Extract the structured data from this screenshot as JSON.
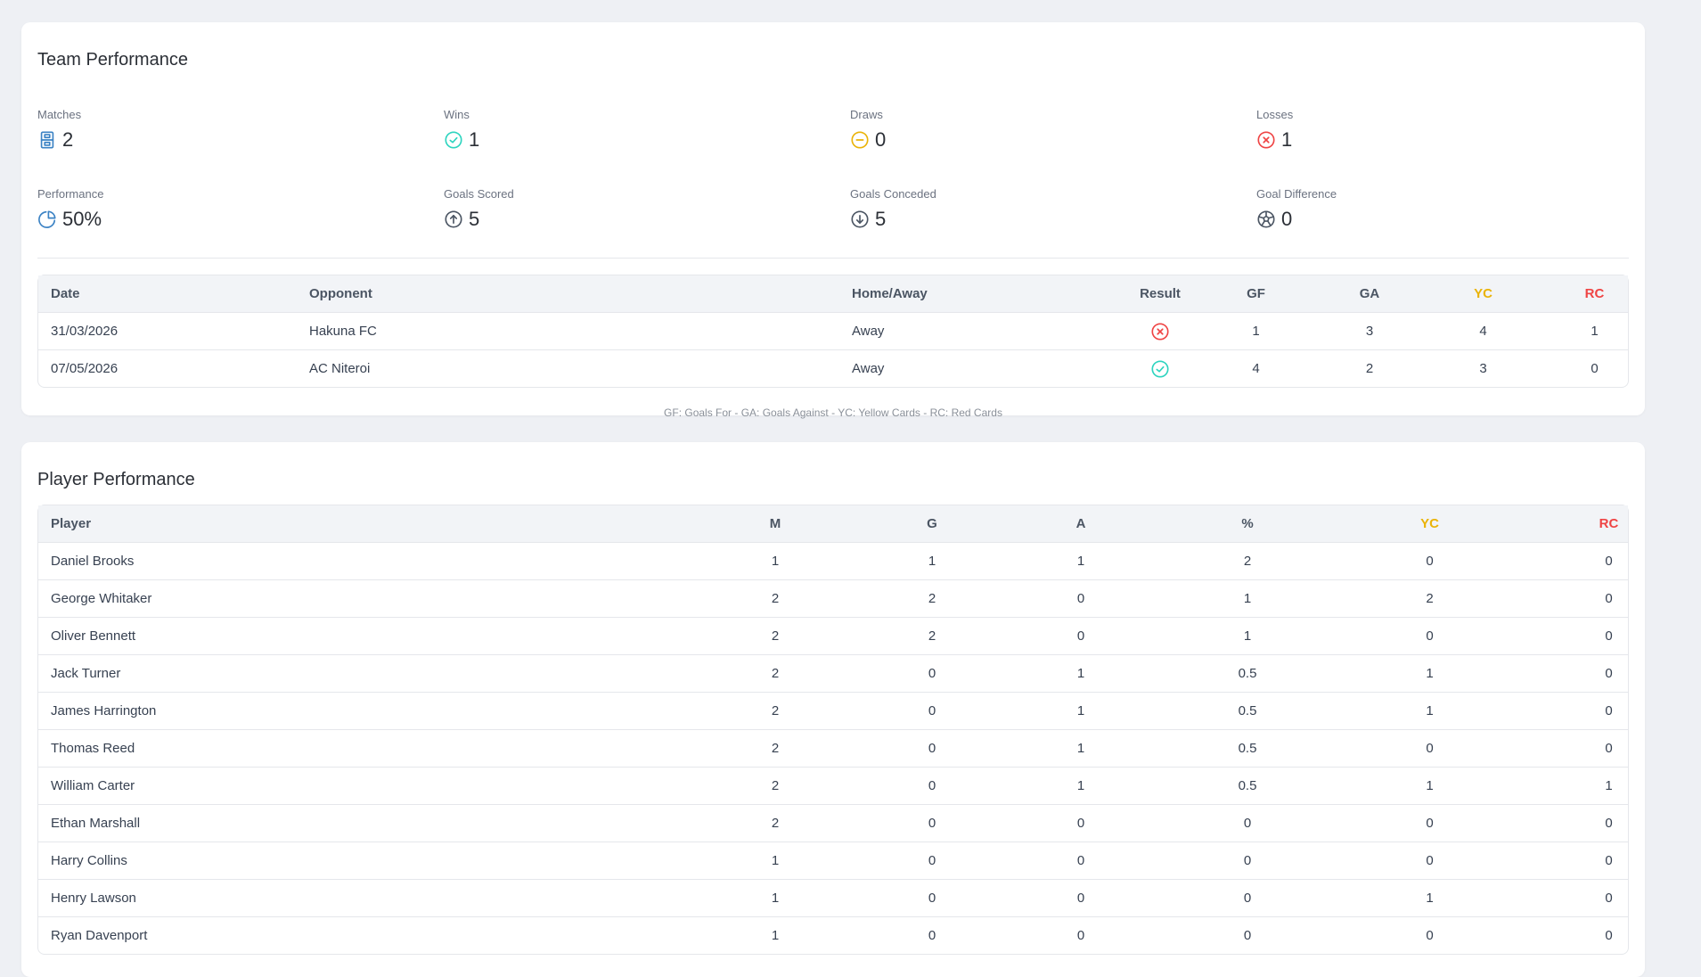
{
  "team": {
    "title": "Team Performance",
    "stats": [
      {
        "label": "Matches",
        "value": "2",
        "icon": "scoreboard-icon",
        "color": "#3b82c4"
      },
      {
        "label": "Wins",
        "value": "1",
        "icon": "check-circle-icon",
        "color": "#2dd4bf"
      },
      {
        "label": "Draws",
        "value": "0",
        "icon": "minus-circle-icon",
        "color": "#eab308"
      },
      {
        "label": "Losses",
        "value": "1",
        "icon": "x-circle-icon",
        "color": "#ef4444"
      },
      {
        "label": "Performance",
        "value": "50%",
        "icon": "pie-chart-icon",
        "color": "#3b82c4"
      },
      {
        "label": "Goals Scored",
        "value": "5",
        "icon": "arrow-up-circle-icon",
        "color": "#4b5563"
      },
      {
        "label": "Goals Conceded",
        "value": "5",
        "icon": "arrow-down-circle-icon",
        "color": "#4b5563"
      },
      {
        "label": "Goal Difference",
        "value": "0",
        "icon": "soccer-ball-icon",
        "color": "#4b5563"
      }
    ],
    "table": {
      "headers": {
        "date": "Date",
        "opponent": "Opponent",
        "home_away": "Home/Away",
        "result": "Result",
        "gf": "GF",
        "ga": "GA",
        "yc": "YC",
        "rc": "RC"
      },
      "rows": [
        {
          "date": "31/03/2026",
          "opponent": "Hakuna FC",
          "home_away": "Away",
          "result": "loss",
          "gf": "1",
          "ga": "3",
          "yc": "4",
          "rc": "1"
        },
        {
          "date": "07/05/2026",
          "opponent": "AC Niteroi",
          "home_away": "Away",
          "result": "win",
          "gf": "4",
          "ga": "2",
          "yc": "3",
          "rc": "0"
        }
      ]
    },
    "legend": "GF: Goals For - GA: Goals Against - YC: Yellow Cards - RC: Red Cards"
  },
  "players": {
    "title": "Player Performance",
    "headers": {
      "player": "Player",
      "m": "M",
      "g": "G",
      "a": "A",
      "pct": "%",
      "yc": "YC",
      "rc": "RC"
    },
    "rows": [
      {
        "player": "Daniel Brooks",
        "m": "1",
        "g": "1",
        "a": "1",
        "pct": "2",
        "yc": "0",
        "rc": "0"
      },
      {
        "player": "George Whitaker",
        "m": "2",
        "g": "2",
        "a": "0",
        "pct": "1",
        "yc": "2",
        "rc": "0"
      },
      {
        "player": "Oliver Bennett",
        "m": "2",
        "g": "2",
        "a": "0",
        "pct": "1",
        "yc": "0",
        "rc": "0"
      },
      {
        "player": "Jack Turner",
        "m": "2",
        "g": "0",
        "a": "1",
        "pct": "0.5",
        "yc": "1",
        "rc": "0"
      },
      {
        "player": "James Harrington",
        "m": "2",
        "g": "0",
        "a": "1",
        "pct": "0.5",
        "yc": "1",
        "rc": "0"
      },
      {
        "player": "Thomas Reed",
        "m": "2",
        "g": "0",
        "a": "1",
        "pct": "0.5",
        "yc": "0",
        "rc": "0"
      },
      {
        "player": "William Carter",
        "m": "2",
        "g": "0",
        "a": "1",
        "pct": "0.5",
        "yc": "1",
        "rc": "1"
      },
      {
        "player": "Ethan Marshall",
        "m": "2",
        "g": "0",
        "a": "0",
        "pct": "0",
        "yc": "0",
        "rc": "0"
      },
      {
        "player": "Harry Collins",
        "m": "1",
        "g": "0",
        "a": "0",
        "pct": "0",
        "yc": "0",
        "rc": "0"
      },
      {
        "player": "Henry Lawson",
        "m": "1",
        "g": "0",
        "a": "0",
        "pct": "0",
        "yc": "1",
        "rc": "0"
      },
      {
        "player": "Ryan Davenport",
        "m": "1",
        "g": "0",
        "a": "0",
        "pct": "0",
        "yc": "0",
        "rc": "0"
      }
    ]
  },
  "colors": {
    "yellow_card": "#eab308",
    "red_card": "#ef4444",
    "win": "#2dd4bf",
    "loss": "#ef4444"
  }
}
